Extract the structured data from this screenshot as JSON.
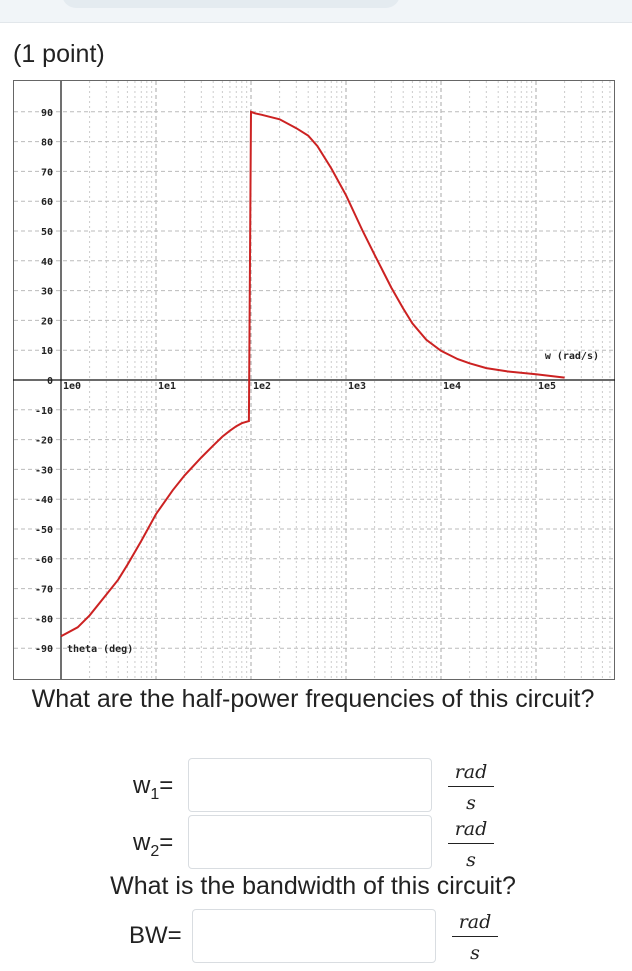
{
  "header": {
    "points": "(1 point)"
  },
  "chart_data": {
    "type": "line",
    "x_scale": "log",
    "xlim": [
      1,
      200000
    ],
    "ylim": [
      -95,
      95
    ],
    "x_ticks": [
      "1e0",
      "1e1",
      "1e2",
      "1e3",
      "1e4",
      "1e5"
    ],
    "y_ticks": [
      "90",
      "80",
      "70",
      "60",
      "50",
      "40",
      "30",
      "20",
      "10",
      "0",
      "-10",
      "-20",
      "-30",
      "-40",
      "-50",
      "-60",
      "-70",
      "-80",
      "-90"
    ],
    "xlabel": "w (rad/s)",
    "ylabel": "theta (deg)",
    "grid": true,
    "line_color": "#cc2222",
    "series": [
      {
        "x": [
          1,
          1.5,
          2,
          3,
          4,
          5,
          7,
          10,
          15,
          20,
          30,
          40,
          50,
          60,
          70,
          80,
          90,
          95,
          100,
          110,
          130,
          150,
          200,
          300,
          400,
          500,
          700,
          1000,
          1500,
          2000,
          3000,
          4000,
          5000,
          7000,
          10000,
          15000,
          20000,
          30000,
          50000,
          100000,
          200000
        ],
        "y": [
          -86,
          -83,
          -79,
          -72,
          -67,
          -62,
          -54,
          -45,
          -37,
          -32,
          -26,
          -22,
          -19,
          -17,
          -15.5,
          -14.5,
          -14,
          -13.8,
          90,
          89.5,
          89,
          88.5,
          87.5,
          84.5,
          82,
          78.5,
          71,
          62,
          50,
          42,
          31,
          24,
          19,
          13.5,
          9.8,
          7,
          5.6,
          4,
          2.9,
          1.9,
          0.8
        ]
      }
    ]
  },
  "question1": "What are the half-power frequencies of this circuit?",
  "w1": {
    "label": "w",
    "sub": "1",
    "eq": "=",
    "value": "",
    "unit_num": "rad",
    "unit_den": "s"
  },
  "w2": {
    "label": "w",
    "sub": "2",
    "eq": "=",
    "value": "",
    "unit_num": "rad",
    "unit_den": "s"
  },
  "question2": "What is the bandwidth of this circuit?",
  "bw": {
    "label": "BW=",
    "value": "",
    "unit_num": "rad",
    "unit_den": "s"
  }
}
